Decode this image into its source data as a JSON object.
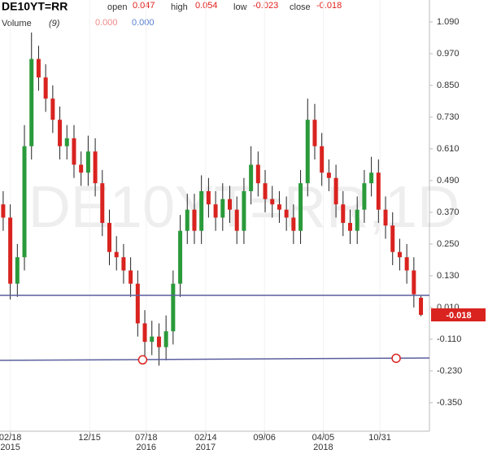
{
  "chart_data": {
    "type": "candlestick",
    "symbol": "DE10YT=RR",
    "watermark": "DE10YT=RR,1D",
    "header": {
      "open": "open",
      "high": "high",
      "low": "low",
      "close": "close"
    },
    "volume_legend": {
      "label": "Volume",
      "param": "(9)",
      "values": [
        {
          "value": 0,
          "label": "0.000"
        },
        {
          "value": 0,
          "label": "0.000"
        }
      ]
    },
    "open": [
      0.4,
      0.35,
      0.1,
      0.2,
      0.62,
      0.95,
      0.88,
      0.8,
      0.72,
      0.62,
      0.65,
      0.55,
      0.52,
      0.6,
      0.48,
      0.33,
      0.22,
      0.2,
      0.15,
      0.1,
      -0.05,
      -0.12,
      -0.1,
      -0.14,
      -0.08,
      0.1,
      0.3,
      0.38,
      0.3,
      0.45,
      0.4,
      0.35,
      0.42,
      0.38,
      0.3,
      0.45,
      0.55,
      0.48,
      0.42,
      0.4,
      0.38,
      0.35,
      0.3,
      0.48,
      0.72,
      0.62,
      0.52,
      0.5,
      0.4,
      0.33,
      0.3,
      0.38,
      0.48,
      0.52,
      0.38,
      0.32,
      0.22,
      0.2,
      0.15,
      0.047
    ],
    "high": [
      0.45,
      0.4,
      0.25,
      0.7,
      1.05,
      1.0,
      0.93,
      0.85,
      0.77,
      0.7,
      0.7,
      0.6,
      0.66,
      0.65,
      0.53,
      0.38,
      0.28,
      0.25,
      0.2,
      0.15,
      0.0,
      -0.04,
      -0.05,
      -0.02,
      0.15,
      0.36,
      0.44,
      0.44,
      0.51,
      0.5,
      0.45,
      0.48,
      0.47,
      0.43,
      0.5,
      0.62,
      0.6,
      0.53,
      0.47,
      0.45,
      0.43,
      0.4,
      0.53,
      0.8,
      0.78,
      0.67,
      0.57,
      0.55,
      0.45,
      0.38,
      0.43,
      0.53,
      0.58,
      0.57,
      0.43,
      0.37,
      0.27,
      0.25,
      0.2,
      0.054
    ],
    "low": [
      0.3,
      0.04,
      0.05,
      0.15,
      0.57,
      0.83,
      0.75,
      0.67,
      0.57,
      0.57,
      0.5,
      0.47,
      0.47,
      0.43,
      0.28,
      0.17,
      0.15,
      0.1,
      0.05,
      -0.1,
      -0.18,
      -0.17,
      -0.21,
      -0.19,
      -0.13,
      0.05,
      0.25,
      0.25,
      0.25,
      0.35,
      0.3,
      0.3,
      0.33,
      0.25,
      0.25,
      0.4,
      0.43,
      0.37,
      0.35,
      0.33,
      0.3,
      0.25,
      0.25,
      0.43,
      0.57,
      0.47,
      0.45,
      0.35,
      0.28,
      0.25,
      0.25,
      0.33,
      0.43,
      0.33,
      0.27,
      0.17,
      0.15,
      0.1,
      0.01,
      -0.023
    ],
    "close": [
      0.35,
      0.1,
      0.2,
      0.62,
      0.95,
      0.88,
      0.8,
      0.72,
      0.62,
      0.65,
      0.55,
      0.52,
      0.6,
      0.48,
      0.33,
      0.22,
      0.2,
      0.15,
      0.1,
      -0.05,
      -0.12,
      -0.1,
      -0.14,
      -0.08,
      0.1,
      0.3,
      0.38,
      0.3,
      0.45,
      0.4,
      0.35,
      0.42,
      0.38,
      0.3,
      0.45,
      0.55,
      0.48,
      0.42,
      0.4,
      0.38,
      0.35,
      0.3,
      0.48,
      0.72,
      0.62,
      0.52,
      0.5,
      0.4,
      0.33,
      0.3,
      0.38,
      0.48,
      0.52,
      0.38,
      0.32,
      0.22,
      0.2,
      0.15,
      0.06,
      -0.018
    ],
    "up_color": "#2a9a3a",
    "down_color": "#d9231f",
    "xlim": [
      -0.45,
      60.2
    ],
    "xticks": [
      {
        "value": 1,
        "label": "02/18"
      },
      {
        "value": 12.2,
        "label": "12/15"
      },
      {
        "value": 20.2,
        "label": "07/18"
      },
      {
        "value": 28.6,
        "label": "02/14"
      },
      {
        "value": 36.9,
        "label": "09/06"
      },
      {
        "value": 45.2,
        "label": "04/05"
      },
      {
        "value": 53.2,
        "label": "10/31"
      }
    ],
    "x_year_labels": [
      {
        "value": 1,
        "label": "2015"
      },
      {
        "value": 20.2,
        "label": "2016"
      },
      {
        "value": 28.6,
        "label": "2017"
      },
      {
        "value": 45.2,
        "label": "2018"
      }
    ],
    "ylim": [
      -0.458,
      1.173
    ],
    "yticks": [
      {
        "value": 1.09,
        "label": "1.090"
      },
      {
        "value": 0.97,
        "label": "0.970"
      },
      {
        "value": 0.85,
        "label": "0.850"
      },
      {
        "value": 0.73,
        "label": "0.730"
      },
      {
        "value": 0.61,
        "label": "0.610"
      },
      {
        "value": 0.49,
        "label": "0.490"
      },
      {
        "value": 0.37,
        "label": "0.370"
      },
      {
        "value": 0.25,
        "label": "0.250"
      },
      {
        "value": 0.13,
        "label": "0.130"
      },
      {
        "value": 0.01,
        "label": "0.010"
      },
      {
        "value": -0.11,
        "label": "-0.110"
      },
      {
        "value": -0.23,
        "label": "-0.230"
      },
      {
        "value": -0.35,
        "label": "-0.350"
      }
    ],
    "trendlines": [
      {
        "x": [
          -0.45,
          60.2
        ],
        "y": [
          0.056,
          0.056
        ],
        "color": "#5a5f9e"
      },
      {
        "x": [
          -0.45,
          60.2
        ],
        "y": [
          -0.19,
          -0.181
        ],
        "color": "#5a5f9e"
      }
    ],
    "markers": [
      {
        "x": 19.7,
        "y": -0.188,
        "color": "#d9231f"
      },
      {
        "x": 55.5,
        "y": -0.182,
        "color": "#d9231f"
      }
    ]
  }
}
